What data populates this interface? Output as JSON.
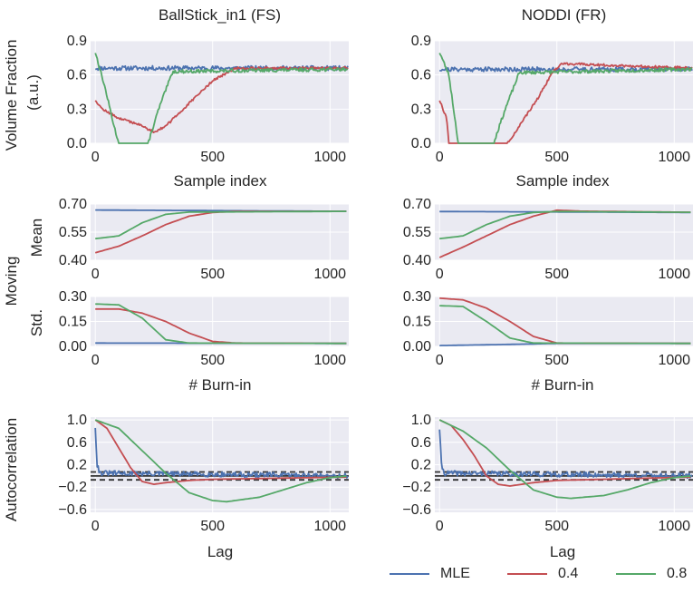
{
  "legend": {
    "mle": "MLE",
    "r04": "0.4",
    "r08": "0.8"
  },
  "colors": {
    "mle": "#4c72b0",
    "r04": "#c44e52",
    "r08": "#55a868",
    "bg": "#eaeaf2",
    "grid": "#ffffff"
  },
  "labels": {
    "vf_ylabel1": "Volume Fraction",
    "vf_ylabel2": "(a.u.)",
    "moving": "Moving",
    "mean": "Mean",
    "std": "Std.",
    "autocorr": "Autocorrelation",
    "sample_index": "Sample index",
    "burn_in": "# Burn-in",
    "lag": "Lag"
  },
  "chart_data": [
    {
      "type": "line",
      "column": "BallStick_in1 (FS)",
      "row": "volume_fraction",
      "title": "BallStick_in1 (FS)",
      "xlabel": "Sample index",
      "ylabel": "Volume Fraction (a.u.)",
      "xlim": [
        -20,
        1080
      ],
      "ylim": [
        0,
        0.9
      ],
      "xticks": [
        0,
        500,
        1000
      ],
      "yticks": [
        0.0,
        0.3,
        0.6,
        0.9
      ],
      "xticklabels": [
        "0",
        "500",
        "1000"
      ],
      "yticklabels": [
        "0.0",
        "0.3",
        "0.6",
        "0.9"
      ],
      "series": [
        {
          "name": "MLE",
          "color": "#4c72b0",
          "noise": 0.02,
          "seed": 11,
          "points": [
            [
              0,
              0.66
            ],
            [
              1080,
              0.66
            ]
          ]
        },
        {
          "name": "0.4",
          "color": "#c44e52",
          "noise": 0.01,
          "seed": 12,
          "points": [
            [
              0,
              0.38
            ],
            [
              30,
              0.3
            ],
            [
              100,
              0.22
            ],
            [
              180,
              0.17
            ],
            [
              250,
              0.1
            ],
            [
              300,
              0.15
            ],
            [
              400,
              0.35
            ],
            [
              500,
              0.55
            ],
            [
              600,
              0.66
            ],
            [
              1080,
              0.66
            ]
          ]
        },
        {
          "name": "0.8",
          "color": "#55a868",
          "noise": 0.015,
          "seed": 13,
          "points": [
            [
              0,
              0.8
            ],
            [
              40,
              0.5
            ],
            [
              80,
              0.15
            ],
            [
              100,
              0.0
            ],
            [
              225,
              0.0
            ],
            [
              270,
              0.3
            ],
            [
              330,
              0.63
            ],
            [
              1080,
              0.65
            ]
          ]
        }
      ]
    },
    {
      "type": "line",
      "column": "NODDI (FR)",
      "row": "volume_fraction",
      "title": "NODDI (FR)",
      "xlabel": "Sample index",
      "ylabel": "",
      "xlim": [
        -20,
        1080
      ],
      "ylim": [
        0,
        0.9
      ],
      "xticks": [
        0,
        500,
        1000
      ],
      "yticks": [
        0.0,
        0.3,
        0.6,
        0.9
      ],
      "xticklabels": [
        "0",
        "500",
        "1000"
      ],
      "yticklabels": [
        "0.0",
        "0.3",
        "0.6",
        "0.9"
      ],
      "series": [
        {
          "name": "MLE",
          "color": "#4c72b0",
          "noise": 0.02,
          "seed": 21,
          "points": [
            [
              0,
              0.65
            ],
            [
              1080,
              0.65
            ]
          ]
        },
        {
          "name": "0.4",
          "color": "#c44e52",
          "noise": 0.01,
          "seed": 22,
          "points": [
            [
              0,
              0.38
            ],
            [
              30,
              0.22
            ],
            [
              40,
              0.0
            ],
            [
              290,
              0.0
            ],
            [
              340,
              0.15
            ],
            [
              420,
              0.4
            ],
            [
              480,
              0.62
            ],
            [
              520,
              0.7
            ],
            [
              1080,
              0.66
            ]
          ]
        },
        {
          "name": "0.8",
          "color": "#55a868",
          "noise": 0.015,
          "seed": 23,
          "points": [
            [
              0,
              0.8
            ],
            [
              40,
              0.6
            ],
            [
              80,
              0.0
            ],
            [
              230,
              0.0
            ],
            [
              280,
              0.3
            ],
            [
              340,
              0.62
            ],
            [
              1080,
              0.65
            ]
          ]
        }
      ]
    },
    {
      "type": "line",
      "column": "BallStick_in1 (FS)",
      "row": "moving_mean",
      "title": "",
      "xlabel": "",
      "ylabel": "Mean",
      "xlim": [
        -20,
        1080
      ],
      "ylim": [
        0.4,
        0.7
      ],
      "xticks": [
        0,
        500,
        1000
      ],
      "yticks": [
        0.4,
        0.55,
        0.7
      ],
      "xticklabels": [
        "0",
        "500",
        "1000"
      ],
      "yticklabels": [
        "0.40",
        "0.55",
        "0.70"
      ],
      "series": [
        {
          "name": "MLE",
          "color": "#4c72b0",
          "points": [
            [
              0,
              0.668
            ],
            [
              1080,
              0.661
            ]
          ]
        },
        {
          "name": "0.4",
          "color": "#c44e52",
          "points": [
            [
              0,
              0.44
            ],
            [
              100,
              0.475
            ],
            [
              200,
              0.53
            ],
            [
              300,
              0.59
            ],
            [
              400,
              0.635
            ],
            [
              500,
              0.655
            ],
            [
              600,
              0.661
            ],
            [
              1080,
              0.661
            ]
          ]
        },
        {
          "name": "0.8",
          "color": "#55a868",
          "points": [
            [
              0,
              0.515
            ],
            [
              100,
              0.53
            ],
            [
              200,
              0.6
            ],
            [
              300,
              0.645
            ],
            [
              400,
              0.657
            ],
            [
              1080,
              0.661
            ]
          ]
        }
      ]
    },
    {
      "type": "line",
      "column": "NODDI (FR)",
      "row": "moving_mean",
      "title": "",
      "xlabel": "",
      "ylabel": "",
      "xlim": [
        -20,
        1080
      ],
      "ylim": [
        0.4,
        0.7
      ],
      "xticks": [
        0,
        500,
        1000
      ],
      "yticks": [
        0.4,
        0.55,
        0.7
      ],
      "xticklabels": [
        "0",
        "500",
        "1000"
      ],
      "yticklabels": [
        "0.40",
        "0.55",
        "0.70"
      ],
      "series": [
        {
          "name": "MLE",
          "color": "#4c72b0",
          "points": [
            [
              0,
              0.66
            ],
            [
              1080,
              0.655
            ]
          ]
        },
        {
          "name": "0.4",
          "color": "#c44e52",
          "points": [
            [
              0,
              0.415
            ],
            [
              100,
              0.47
            ],
            [
              200,
              0.53
            ],
            [
              300,
              0.59
            ],
            [
              400,
              0.635
            ],
            [
              500,
              0.667
            ],
            [
              600,
              0.662
            ],
            [
              1080,
              0.656
            ]
          ]
        },
        {
          "name": "0.8",
          "color": "#55a868",
          "points": [
            [
              0,
              0.515
            ],
            [
              100,
              0.53
            ],
            [
              200,
              0.59
            ],
            [
              300,
              0.635
            ],
            [
              400,
              0.655
            ],
            [
              500,
              0.66
            ],
            [
              1080,
              0.656
            ]
          ]
        }
      ]
    },
    {
      "type": "line",
      "column": "BallStick_in1 (FS)",
      "row": "moving_std",
      "title": "",
      "xlabel": "# Burn-in",
      "ylabel": "Std.",
      "xlim": [
        -20,
        1080
      ],
      "ylim": [
        0,
        0.3
      ],
      "xticks": [
        0,
        500,
        1000
      ],
      "yticks": [
        0.0,
        0.15,
        0.3
      ],
      "xticklabels": [
        "0",
        "500",
        "1000"
      ],
      "yticklabels": [
        "0.00",
        "0.15",
        "0.30"
      ],
      "series": [
        {
          "name": "MLE",
          "color": "#4c72b0",
          "points": [
            [
              0,
              0.02
            ],
            [
              1080,
              0.018
            ]
          ]
        },
        {
          "name": "0.4",
          "color": "#c44e52",
          "points": [
            [
              0,
              0.225
            ],
            [
              100,
              0.225
            ],
            [
              200,
              0.2
            ],
            [
              300,
              0.15
            ],
            [
              400,
              0.08
            ],
            [
              500,
              0.03
            ],
            [
              600,
              0.02
            ],
            [
              1080,
              0.018
            ]
          ]
        },
        {
          "name": "0.8",
          "color": "#55a868",
          "points": [
            [
              0,
              0.255
            ],
            [
              100,
              0.25
            ],
            [
              200,
              0.17
            ],
            [
              300,
              0.04
            ],
            [
              400,
              0.02
            ],
            [
              1080,
              0.018
            ]
          ]
        }
      ]
    },
    {
      "type": "line",
      "column": "NODDI (FR)",
      "row": "moving_std",
      "title": "",
      "xlabel": "# Burn-in",
      "ylabel": "",
      "xlim": [
        -20,
        1080
      ],
      "ylim": [
        0,
        0.3
      ],
      "xticks": [
        0,
        500,
        1000
      ],
      "yticks": [
        0.0,
        0.15,
        0.3
      ],
      "xticklabels": [
        "0",
        "500",
        "1000"
      ],
      "yticklabels": [
        "0.00",
        "0.15",
        "0.30"
      ],
      "series": [
        {
          "name": "MLE",
          "color": "#4c72b0",
          "points": [
            [
              0,
              0.005
            ],
            [
              300,
              0.012
            ],
            [
              500,
              0.018
            ],
            [
              1080,
              0.018
            ]
          ]
        },
        {
          "name": "0.4",
          "color": "#c44e52",
          "points": [
            [
              0,
              0.29
            ],
            [
              100,
              0.28
            ],
            [
              200,
              0.23
            ],
            [
              300,
              0.15
            ],
            [
              400,
              0.06
            ],
            [
              500,
              0.02
            ],
            [
              1080,
              0.018
            ]
          ]
        },
        {
          "name": "0.8",
          "color": "#55a868",
          "points": [
            [
              0,
              0.245
            ],
            [
              100,
              0.24
            ],
            [
              200,
              0.15
            ],
            [
              300,
              0.05
            ],
            [
              400,
              0.02
            ],
            [
              1080,
              0.018
            ]
          ]
        }
      ]
    },
    {
      "type": "line",
      "column": "BallStick_in1 (FS)",
      "row": "autocorrelation",
      "title": "",
      "xlabel": "Lag",
      "ylabel": "Autocorrelation",
      "xlim": [
        -20,
        1080
      ],
      "ylim": [
        -0.65,
        1.05
      ],
      "xticks": [
        0,
        500,
        1000
      ],
      "yticks": [
        -0.6,
        -0.2,
        0.2,
        0.6,
        1.0
      ],
      "xticklabels": [
        "0",
        "500",
        "1000"
      ],
      "yticklabels": [
        "−0.6",
        "−0.2",
        "0.2",
        "0.6",
        "1.0"
      ],
      "hlines": [
        {
          "y": 0.0,
          "style": "solid"
        },
        {
          "y": 0.07,
          "style": "dashed"
        },
        {
          "y": -0.07,
          "style": "dashed"
        }
      ],
      "series": [
        {
          "name": "MLE",
          "color": "#4c72b0",
          "noise": 0.045,
          "seed": 31,
          "points": [
            [
              0,
              0.88
            ],
            [
              8,
              0.2
            ],
            [
              20,
              0.05
            ],
            [
              1080,
              0.0
            ]
          ]
        },
        {
          "name": "0.4",
          "color": "#c44e52",
          "points": [
            [
              0,
              1.0
            ],
            [
              50,
              0.85
            ],
            [
              100,
              0.5
            ],
            [
              150,
              0.15
            ],
            [
              200,
              -0.1
            ],
            [
              250,
              -0.15
            ],
            [
              300,
              -0.12
            ],
            [
              400,
              -0.08
            ],
            [
              500,
              -0.06
            ],
            [
              1080,
              -0.02
            ]
          ]
        },
        {
          "name": "0.8",
          "color": "#55a868",
          "points": [
            [
              0,
              1.0
            ],
            [
              100,
              0.85
            ],
            [
              200,
              0.45
            ],
            [
              300,
              0.05
            ],
            [
              400,
              -0.3
            ],
            [
              500,
              -0.44
            ],
            [
              560,
              -0.46
            ],
            [
              700,
              -0.38
            ],
            [
              800,
              -0.25
            ],
            [
              900,
              -0.12
            ],
            [
              1000,
              -0.03
            ],
            [
              1080,
              0.0
            ]
          ]
        }
      ]
    },
    {
      "type": "line",
      "column": "NODDI (FR)",
      "row": "autocorrelation",
      "title": "",
      "xlabel": "Lag",
      "ylabel": "",
      "xlim": [
        -20,
        1080
      ],
      "ylim": [
        -0.65,
        1.05
      ],
      "xticks": [
        0,
        500,
        1000
      ],
      "yticks": [
        -0.6,
        -0.2,
        0.2,
        0.6,
        1.0
      ],
      "xticklabels": [
        "0",
        "500",
        "1000"
      ],
      "yticklabels": [
        "−0.6",
        "−0.2",
        "0.2",
        "0.6",
        "1.0"
      ],
      "hlines": [
        {
          "y": 0.0,
          "style": "solid"
        },
        {
          "y": 0.07,
          "style": "dashed"
        },
        {
          "y": -0.07,
          "style": "dashed"
        }
      ],
      "series": [
        {
          "name": "MLE",
          "color": "#4c72b0",
          "noise": 0.045,
          "seed": 41,
          "points": [
            [
              0,
              0.85
            ],
            [
              8,
              0.2
            ],
            [
              20,
              0.05
            ],
            [
              1080,
              0.0
            ]
          ]
        },
        {
          "name": "0.4",
          "color": "#c44e52",
          "points": [
            [
              0,
              1.0
            ],
            [
              50,
              0.9
            ],
            [
              100,
              0.65
            ],
            [
              150,
              0.35
            ],
            [
              200,
              0.0
            ],
            [
              250,
              -0.15
            ],
            [
              300,
              -0.18
            ],
            [
              400,
              -0.12
            ],
            [
              500,
              -0.08
            ],
            [
              1080,
              -0.02
            ]
          ]
        },
        {
          "name": "0.8",
          "color": "#55a868",
          "points": [
            [
              0,
              1.0
            ],
            [
              100,
              0.8
            ],
            [
              200,
              0.5
            ],
            [
              300,
              0.1
            ],
            [
              400,
              -0.25
            ],
            [
              500,
              -0.38
            ],
            [
              560,
              -0.4
            ],
            [
              700,
              -0.35
            ],
            [
              800,
              -0.25
            ],
            [
              900,
              -0.12
            ],
            [
              1000,
              -0.03
            ],
            [
              1080,
              0.0
            ]
          ]
        }
      ]
    }
  ]
}
